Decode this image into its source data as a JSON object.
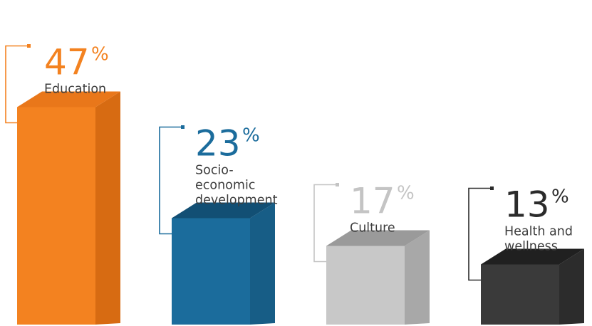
{
  "chart_data": {
    "type": "bar",
    "categories": [
      "Education",
      "Socio-economic development",
      "Culture",
      "Health and wellness"
    ],
    "values": [
      47,
      23,
      17,
      13
    ],
    "unit": "%",
    "bars": [
      {
        "value": 47,
        "value_text": "47",
        "percent_sign": "%",
        "label_lines": [
          "Education"
        ],
        "color_front": "#f38220",
        "color_side": "#d76b12",
        "color_top": "#e9771a",
        "color_text": "#f38220"
      },
      {
        "value": 23,
        "value_text": "23",
        "percent_sign": "%",
        "label_lines": [
          "Socio-",
          "economic",
          "development"
        ],
        "color_front": "#1b6c9c",
        "color_side": "#175d86",
        "color_top": "#124f74",
        "color_text": "#1b6c9c"
      },
      {
        "value": 17,
        "value_text": "17",
        "percent_sign": "%",
        "label_lines": [
          "Culture"
        ],
        "color_front": "#c8c8c8",
        "color_side": "#a8a8a8",
        "color_top": "#9a9a9a",
        "color_text": "#c4c4c4"
      },
      {
        "value": 13,
        "value_text": "13",
        "percent_sign": "%",
        "label_lines": [
          "Health and",
          "wellness"
        ],
        "color_front": "#3a3a3a",
        "color_side": "#2c2c2c",
        "color_top": "#202020",
        "color_text": "#2b2b2b"
      }
    ]
  }
}
